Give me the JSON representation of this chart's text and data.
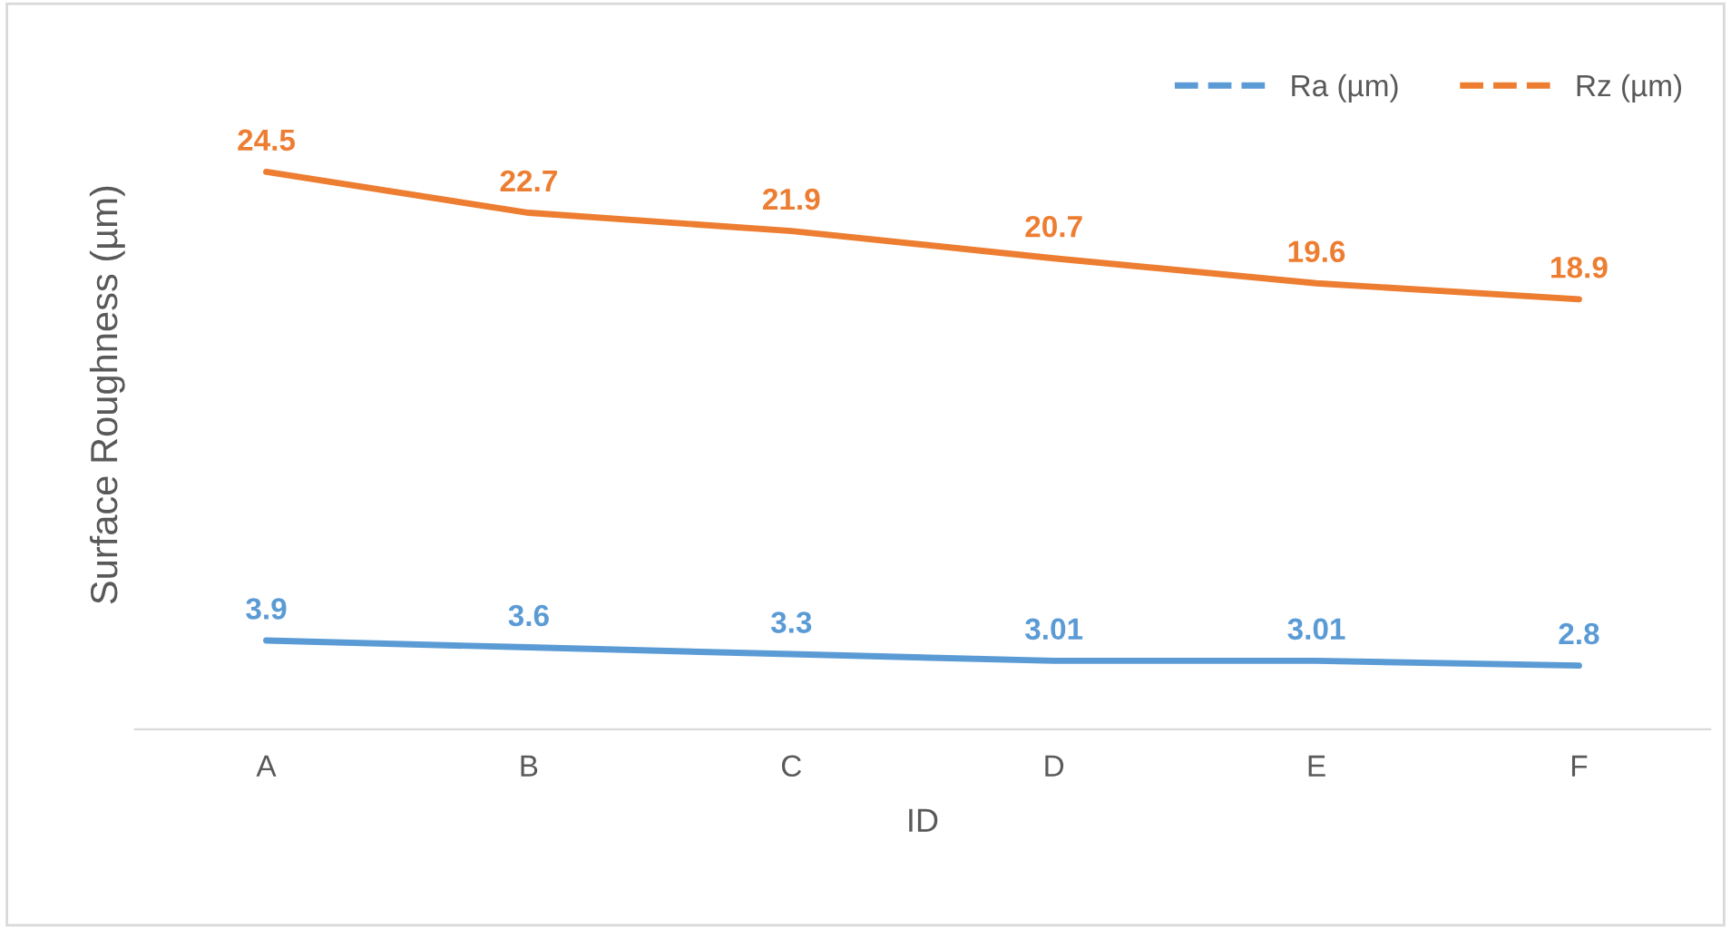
{
  "chart_data": {
    "type": "line",
    "xlabel": "ID",
    "ylabel": "Surface Roughness (µm)",
    "categories": [
      "A",
      "B",
      "C",
      "D",
      "E",
      "F"
    ],
    "series": [
      {
        "name": "Ra (µm)",
        "color": "#5b9bd5",
        "values": [
          3.9,
          3.6,
          3.3,
          3.01,
          3.01,
          2.8
        ]
      },
      {
        "name": "Rz (µm)",
        "color": "#ed7d31",
        "values": [
          24.5,
          22.7,
          21.9,
          20.7,
          19.6,
          18.9
        ]
      }
    ],
    "relative": false,
    "data_labels": true,
    "legend": "top right",
    "grid": false,
    "marker": "none",
    "line_style": "solid"
  }
}
